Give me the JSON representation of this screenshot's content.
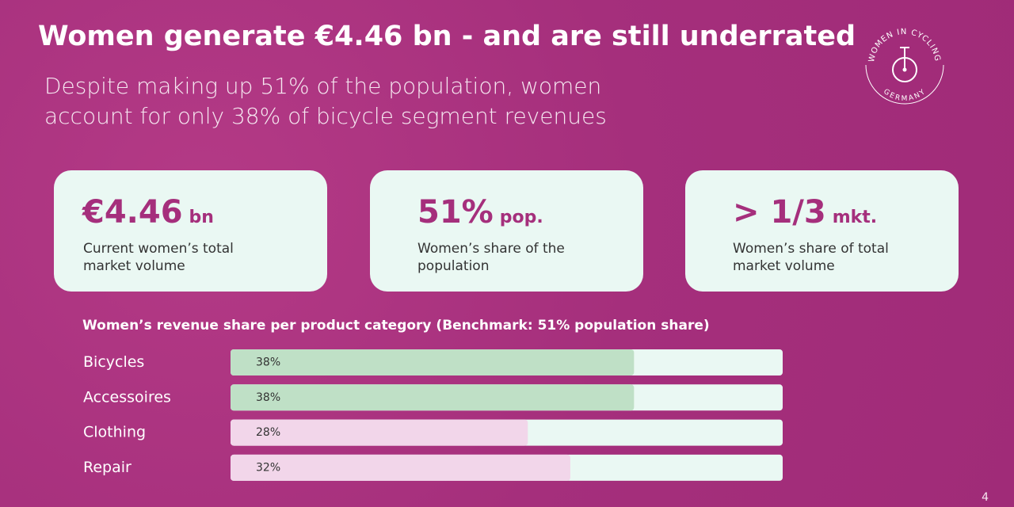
{
  "title": "Women generate €4.46 bn - and are still underrated",
  "subtitle": "Despite making up 51% of the population, women account for only 38% of bicycle segment revenues",
  "logo": {
    "top": "WOMEN IN CYCLING",
    "bottom": "GERMANY"
  },
  "cards": [
    {
      "value": "€4.46",
      "unit": "bn",
      "label": "Current women’s total market volume"
    },
    {
      "value": "51%",
      "unit": "pop.",
      "label": "Women’s share of the population"
    },
    {
      "value": "> 1/3",
      "unit": "mkt.",
      "label": "Women’s share of total market volume"
    }
  ],
  "chart_data": {
    "type": "bar",
    "orientation": "horizontal",
    "title": "Women’s revenue share per product category (Benchmark: 51% population share)",
    "categories": [
      "Bicycles",
      "Accessoires",
      "Clothing",
      "Repair"
    ],
    "values": [
      38,
      38,
      28,
      32
    ],
    "value_labels": [
      "38%",
      "38%",
      "28%",
      "32%"
    ],
    "colors": [
      "#bfe0c6",
      "#bfe0c6",
      "#f2d6ea",
      "#f2d6ea"
    ],
    "track_color": "#eaf8f3",
    "xlim": [
      0,
      52
    ]
  },
  "page_number": "4"
}
